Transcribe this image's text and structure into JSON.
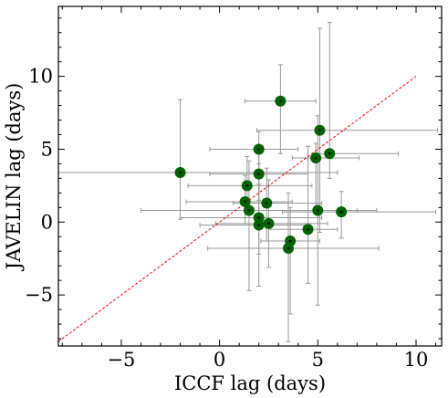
{
  "chart_data": {
    "type": "scatter",
    "xlabel": "ICCF lag (days)",
    "ylabel": "JAVELIN lag (days)",
    "xlim": [
      -8.2,
      11.3
    ],
    "ylim": [
      -8.5,
      14.8
    ],
    "xticks": [
      -5,
      0,
      5,
      10
    ],
    "yticks": [
      -5,
      0,
      5,
      10
    ],
    "xtick_labels": [
      "−5",
      "0",
      "5",
      "10"
    ],
    "ytick_labels": [
      "−5",
      "0",
      "5",
      "10"
    ],
    "grid": false,
    "marker_color": "#006400",
    "errorbar_color": "#999999",
    "reference_line": {
      "x": [
        -8.2,
        10
      ],
      "y": [
        -8.2,
        10
      ],
      "color": "#ff0000",
      "style": "dashed"
    },
    "points": [
      {
        "x": -2.0,
        "y": 3.4,
        "xerr": [
          8.0,
          8.0
        ],
        "yerr": [
          3.2,
          5.0
        ]
      },
      {
        "x": 1.3,
        "y": 1.4,
        "xerr": [
          3.0,
          2.4
        ],
        "yerr": [
          1.5,
          1.8
        ]
      },
      {
        "x": 1.4,
        "y": 2.5,
        "xerr": [
          3.0,
          3.3
        ],
        "yerr": [
          1.8,
          2.0
        ]
      },
      {
        "x": 1.5,
        "y": 0.8,
        "xerr": [
          5.5,
          5.5
        ],
        "yerr": [
          5.5,
          3.4
        ]
      },
      {
        "x": 2.0,
        "y": 5.0,
        "xerr": [
          2.5,
          2.0
        ],
        "yerr": [
          3.5,
          1.2
        ]
      },
      {
        "x": 2.0,
        "y": 3.3,
        "xerr": [
          2.5,
          2.5
        ],
        "yerr": [
          2.0,
          2.0
        ]
      },
      {
        "x": 2.0,
        "y": 0.3,
        "xerr": [
          4.0,
          3.2
        ],
        "yerr": [
          2.5,
          2.3
        ]
      },
      {
        "x": 2.0,
        "y": -0.2,
        "xerr": [
          3.0,
          2.5
        ],
        "yerr": [
          4.2,
          4.2
        ]
      },
      {
        "x": 2.4,
        "y": 1.3,
        "xerr": [
          1.7,
          2.8
        ],
        "yerr": [
          2.6,
          2.4
        ]
      },
      {
        "x": 2.5,
        "y": -0.1,
        "xerr": [
          2.7,
          3.0
        ],
        "yerr": [
          3.0,
          3.0
        ]
      },
      {
        "x": 3.1,
        "y": 8.3,
        "xerr": [
          1.8,
          1.8
        ],
        "yerr": [
          3.6,
          2.5
        ]
      },
      {
        "x": 3.5,
        "y": -1.8,
        "xerr": [
          4.1,
          4.6
        ],
        "yerr": [
          6.4,
          3.8
        ]
      },
      {
        "x": 3.6,
        "y": -1.3,
        "xerr": [
          1.5,
          1.5
        ],
        "yerr": [
          5.0,
          2.3
        ]
      },
      {
        "x": 4.5,
        "y": -0.5,
        "xerr": [
          2.0,
          1.5
        ],
        "yerr": [
          3.7,
          5.7
        ]
      },
      {
        "x": 4.9,
        "y": 4.4,
        "xerr": [
          1.2,
          2.2
        ],
        "yerr": [
          3.4,
          1.0
        ]
      },
      {
        "x": 5.0,
        "y": 0.8,
        "xerr": [
          3.0,
          3.0
        ],
        "yerr": [
          6.5,
          6.5
        ]
      },
      {
        "x": 5.1,
        "y": 6.3,
        "xerr": [
          3.2,
          6.0
        ],
        "yerr": [
          7.0,
          7.0
        ]
      },
      {
        "x": 5.6,
        "y": 4.7,
        "xerr": [
          0.5,
          3.5
        ],
        "yerr": [
          1.7,
          9.0
        ]
      },
      {
        "x": 6.2,
        "y": 0.7,
        "xerr": [
          3.0,
          4.8
        ],
        "yerr": [
          1.8,
          1.4
        ]
      }
    ]
  }
}
